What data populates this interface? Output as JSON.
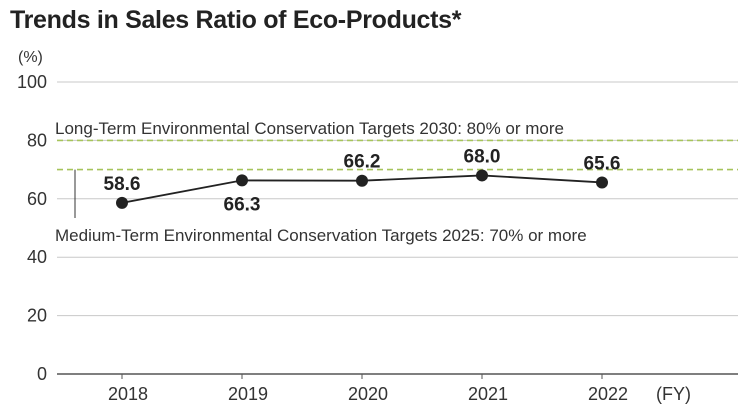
{
  "chart_data": {
    "type": "line",
    "title": "Trends in Sales Ratio of Eco-Products*",
    "ylabel": "(%)",
    "xlabel": "(FY)",
    "categories": [
      "2018",
      "2019",
      "2020",
      "2021",
      "2022"
    ],
    "values": [
      58.6,
      66.3,
      66.2,
      68.0,
      65.6
    ],
    "data_labels": [
      "58.6",
      "66.3",
      "66.2",
      "68.0",
      "65.6"
    ],
    "ylim": [
      0,
      100
    ],
    "yticks": [
      0,
      20,
      40,
      60,
      80,
      100
    ],
    "grid": true,
    "target_lines": [
      {
        "value": 80,
        "label": "Long-Term Environmental Conservation Targets 2030: 80% or more"
      },
      {
        "value": 70,
        "label": "Medium-Term Environmental Conservation Targets 2025: 70% or more"
      }
    ],
    "colors": {
      "line": "#222222",
      "grid": "#c8c8c8",
      "target": "#a6c45a",
      "text": "#333333"
    }
  }
}
